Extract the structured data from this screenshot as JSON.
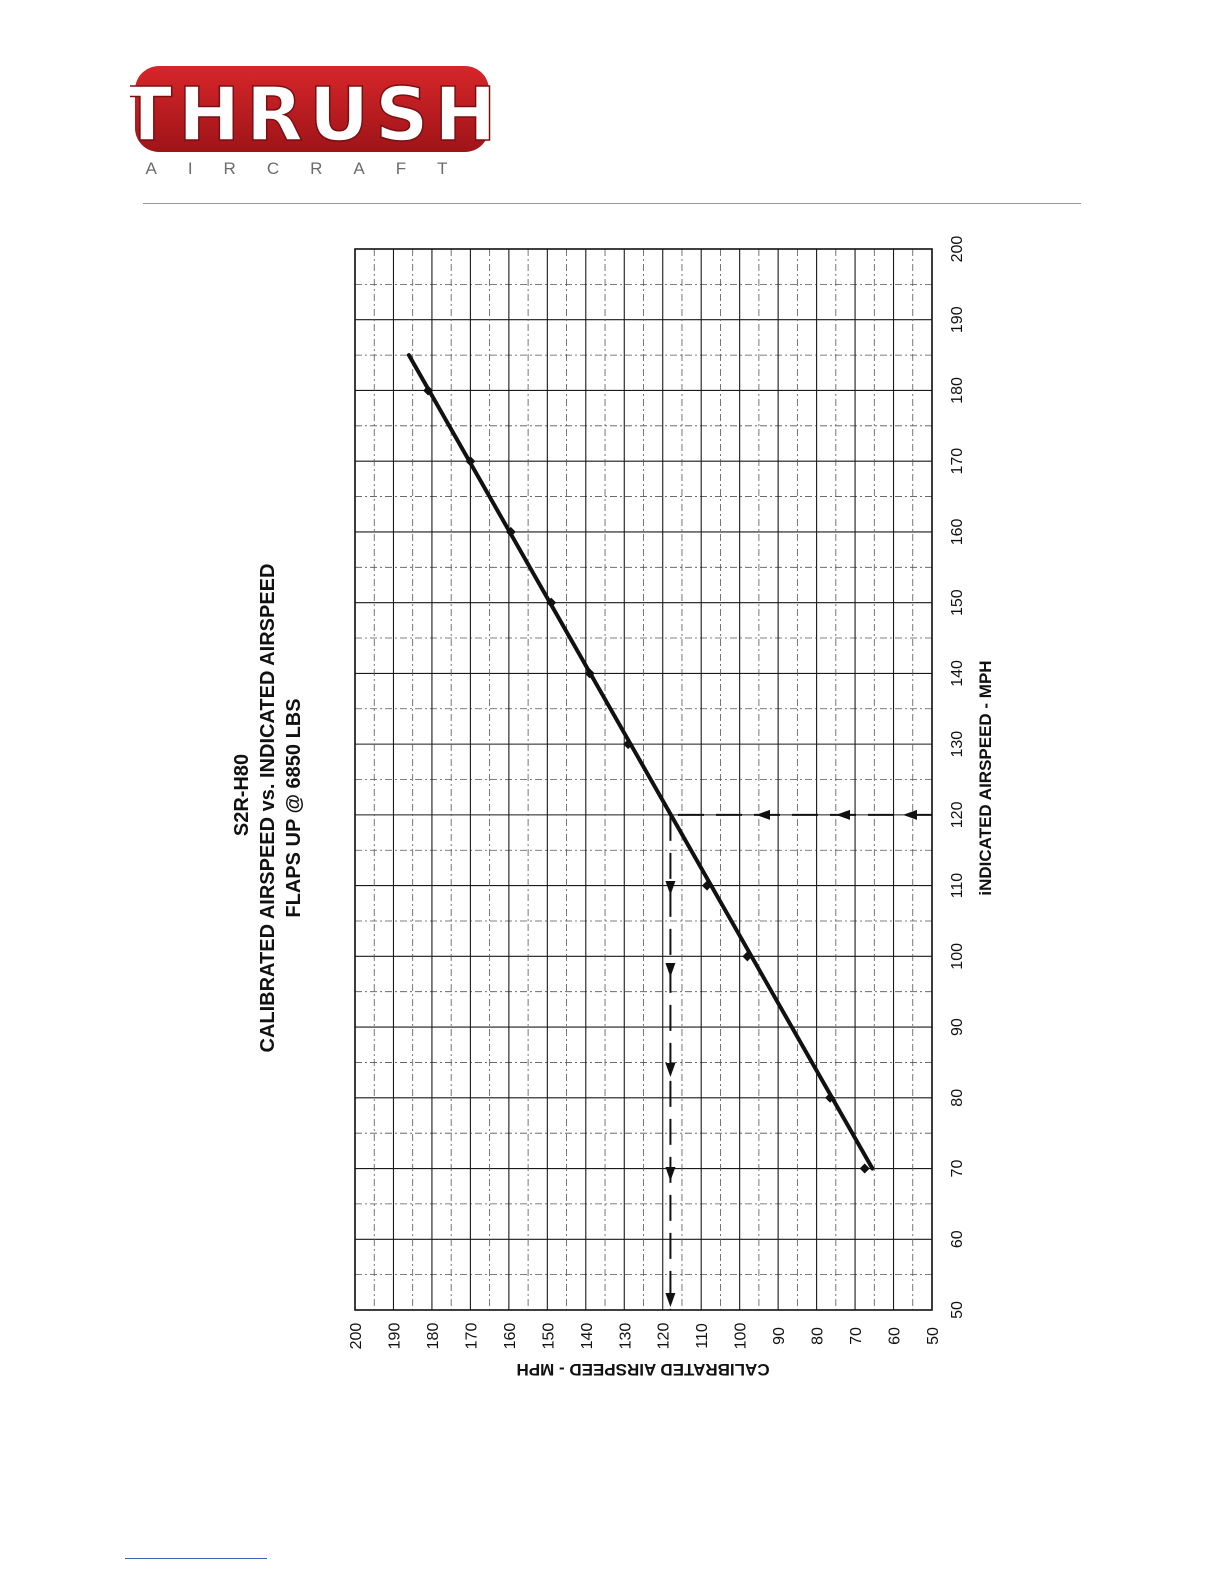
{
  "logo": {
    "brand": "THRUSH",
    "sub": "AIRCRAFT",
    "colors": {
      "red": "#d7262a",
      "dark_red": "#9e1418",
      "gray": "#6b6b6b"
    }
  },
  "chart_data": {
    "type": "line",
    "title": [
      "S2R-H80",
      "CALIBRATED AIRSPEED vs. INDICATED AIRSPEED",
      "FLAPS UP @ 6850 LBS"
    ],
    "xlabel": "iNDICATED AIRSPEED - MPH",
    "ylabel": "CALIBRATED AIRSPEED - MPH",
    "xlim": [
      50,
      200
    ],
    "ylim": [
      50,
      200
    ],
    "x_ticks": [
      50,
      60,
      70,
      80,
      90,
      100,
      110,
      120,
      130,
      140,
      150,
      160,
      170,
      180,
      190,
      200
    ],
    "y_ticks": [
      200,
      190,
      180,
      170,
      160,
      150,
      140,
      130,
      120,
      110,
      100,
      90,
      80,
      70,
      60,
      50
    ],
    "grid": true,
    "orientation": "rotated 90 degrees counter-clockwise on the page",
    "series": [
      {
        "type": "line",
        "x": [
          70,
          185
        ],
        "y": [
          65.5,
          186
        ]
      },
      {
        "type": "scatter",
        "x": [
          70,
          80,
          100,
          110,
          130,
          140,
          150,
          160,
          170,
          180
        ],
        "y": [
          67.5,
          76.5,
          98,
          108.5,
          129,
          139,
          149,
          159.5,
          170,
          181
        ]
      }
    ],
    "example_guide": {
      "indicated": 120,
      "calibrated": 118
    },
    "colors": {
      "line": "#111111",
      "grid": "#1a1a1a"
    }
  }
}
